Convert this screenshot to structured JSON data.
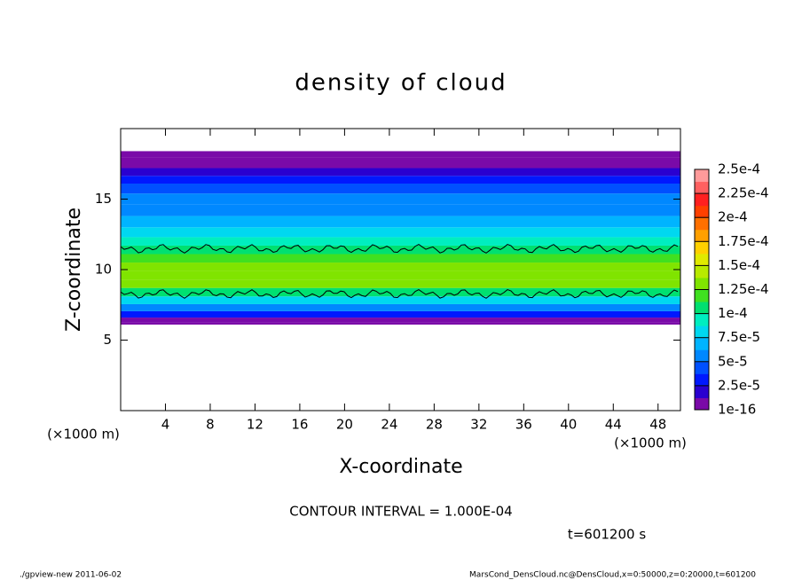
{
  "chart_data": {
    "type": "heatmap",
    "title": "density of cloud",
    "x_label": "X-coordinate",
    "y_label": "Z-coordinate",
    "x_unit": "(×1000 m)",
    "y_unit": "(×1000 m)",
    "xlim": [
      0,
      50
    ],
    "xticks": [
      4,
      8,
      12,
      16,
      20,
      24,
      28,
      32,
      36,
      40,
      44,
      48
    ],
    "ylim": [
      0,
      20
    ],
    "yticks": [
      5,
      10,
      15
    ],
    "z": [
      6.1,
      6.4,
      6.8,
      7.3,
      7.8,
      8.4,
      9.0,
      9.6,
      10.2,
      10.8,
      11.4,
      12.0,
      12.6,
      13.4,
      14.2,
      15.0,
      15.8,
      16.4,
      16.9,
      17.5,
      18.4
    ],
    "values": [
      1e-16,
      1.2e-05,
      2.8e-05,
      5.2e-05,
      8e-05,
      0.000105,
      0.000128,
      0.000132,
      0.000128,
      0.000118,
      0.000102,
      8.8e-05,
      7.6e-05,
      6.8e-05,
      6.2e-05,
      5.4e-05,
      4.4e-05,
      2.8e-05,
      1.4e-05,
      8e-06,
      1e-16
    ],
    "colorbar": {
      "ticks": [
        {
          "value": 1e-16,
          "label": "1e-16"
        },
        {
          "value": 2.5e-05,
          "label": "2.5e-5"
        },
        {
          "value": 5e-05,
          "label": "5e-5"
        },
        {
          "value": 7.5e-05,
          "label": "7.5e-5"
        },
        {
          "value": 0.0001,
          "label": "1e-4"
        },
        {
          "value": 0.000125,
          "label": "1.25e-4"
        },
        {
          "value": 0.00015,
          "label": "1.5e-4"
        },
        {
          "value": 0.000175,
          "label": "1.75e-4"
        },
        {
          "value": 0.0002,
          "label": "2e-4"
        },
        {
          "value": 0.000225,
          "label": "2.25e-4"
        },
        {
          "value": 0.00025,
          "label": "2.5e-4"
        }
      ],
      "colors": [
        "#7a0aa8",
        "#2a00d0",
        "#0018ff",
        "#0050ff",
        "#0088ff",
        "#00b4ff",
        "#00d8f0",
        "#00eec0",
        "#00e070",
        "#40e020",
        "#80e400",
        "#b8ea00",
        "#e0ea00",
        "#ffd000",
        "#ffa000",
        "#ff7000",
        "#ff4000",
        "#ff2020",
        "#ff6060",
        "#ff9a9a"
      ]
    },
    "contour_note": "CONTOUR INTERVAL = 1.000E-04",
    "contour_level": 0.0001,
    "time_note": "t=601200 s",
    "footer_left": "./gpview-new  2011-06-02",
    "footer_right": "MarsCond_DensCloud.nc@DensCloud,x=0:50000,z=0:20000,t=601200"
  }
}
